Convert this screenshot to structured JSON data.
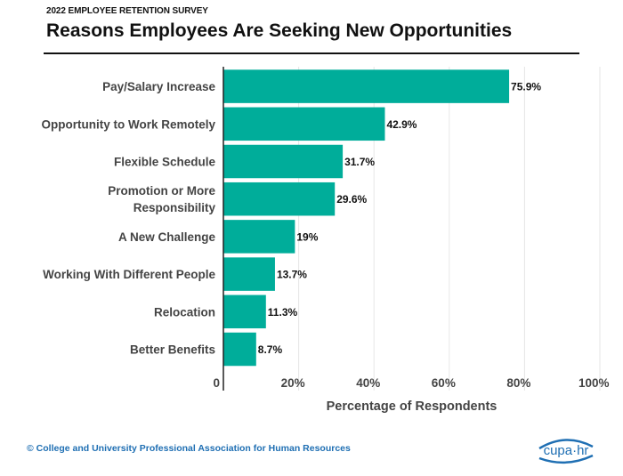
{
  "header": {
    "supertitle": "2022 EMPLOYEE RETENTION SURVEY",
    "title": "Reasons Employees Are Seeking New Opportunities"
  },
  "footer": {
    "copyright": "© College and University Professional Association for Human Resources",
    "logo_text": "cupa·hr"
  },
  "colors": {
    "bar": "#00ad9a",
    "logo": "#1f6fb3"
  },
  "chart_data": {
    "type": "bar",
    "orientation": "horizontal",
    "categories": [
      [
        "Pay/Salary Increase"
      ],
      [
        "Opportunity to Work Remotely"
      ],
      [
        "Flexible Schedule"
      ],
      [
        "Promotion or More",
        "Responsibility"
      ],
      [
        "A New Challenge"
      ],
      [
        "Working With Different People"
      ],
      [
        "Relocation"
      ],
      [
        "Better Benefits"
      ]
    ],
    "values": [
      75.9,
      42.9,
      31.7,
      29.6,
      19,
      13.7,
      11.3,
      8.7
    ],
    "value_labels": [
      "75.9%",
      "42.9%",
      "31.7%",
      "29.6%",
      "19%",
      "13.7%",
      "11.3%",
      "8.7%"
    ],
    "xlabel": "Percentage of Respondents",
    "ylabel": "",
    "xlim": [
      0,
      100
    ],
    "xticks": [
      0,
      20,
      40,
      60,
      80,
      100
    ],
    "xtick_labels": [
      "0",
      "20%",
      "40%",
      "60%",
      "80%",
      "100%"
    ],
    "grid": "vertical"
  }
}
